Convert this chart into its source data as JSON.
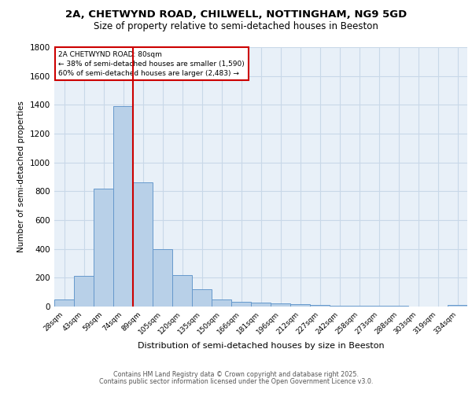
{
  "title_line1": "2A, CHETWYND ROAD, CHILWELL, NOTTINGHAM, NG9 5GD",
  "title_line2": "Size of property relative to semi-detached houses in Beeston",
  "xlabel": "Distribution of semi-detached houses by size in Beeston",
  "ylabel": "Number of semi-detached properties",
  "bar_labels": [
    "28sqm",
    "43sqm",
    "59sqm",
    "74sqm",
    "89sqm",
    "105sqm",
    "120sqm",
    "135sqm",
    "150sqm",
    "166sqm",
    "181sqm",
    "196sqm",
    "212sqm",
    "227sqm",
    "242sqm",
    "258sqm",
    "273sqm",
    "288sqm",
    "303sqm",
    "319sqm",
    "334sqm"
  ],
  "bar_values": [
    50,
    215,
    820,
    1390,
    860,
    400,
    220,
    120,
    50,
    35,
    25,
    20,
    15,
    10,
    5,
    5,
    3,
    3,
    0,
    0,
    10
  ],
  "bar_color": "#b8d0e8",
  "bar_edge_color": "#6699cc",
  "property_label": "2A CHETWYND ROAD: 80sqm",
  "pct_smaller": 38,
  "pct_larger": 60,
  "count_smaller": 1590,
  "count_larger": 2483,
  "vline_color": "#cc0000",
  "annotation_box_color": "#cc0000",
  "ylim": [
    0,
    1800
  ],
  "yticks": [
    0,
    200,
    400,
    600,
    800,
    1000,
    1200,
    1400,
    1600,
    1800
  ],
  "grid_color": "#c8d8e8",
  "bg_color": "#e8f0f8",
  "footer_line1": "Contains HM Land Registry data © Crown copyright and database right 2025.",
  "footer_line2": "Contains public sector information licensed under the Open Government Licence v3.0."
}
